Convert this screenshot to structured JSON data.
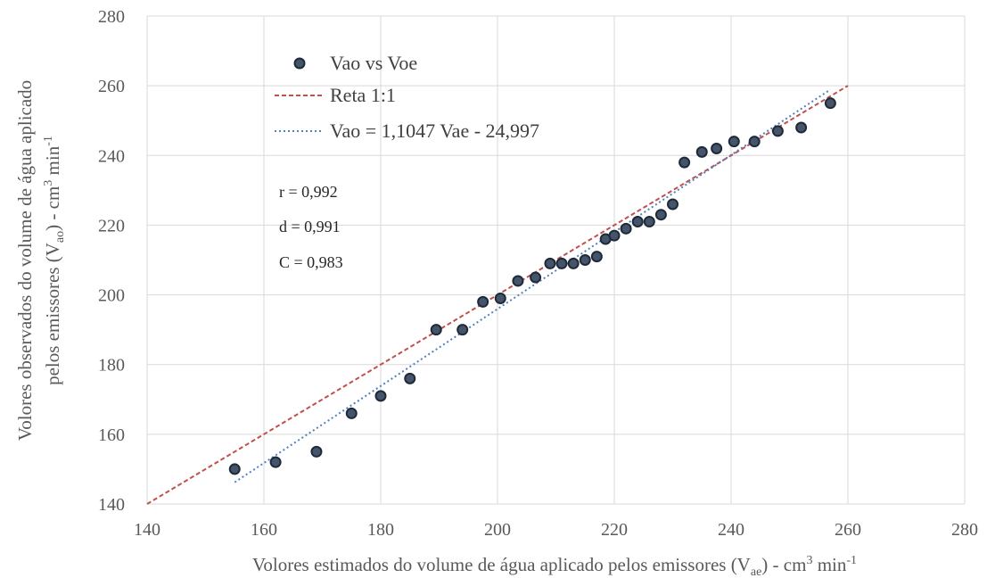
{
  "chart_data": {
    "type": "scatter",
    "xlim": [
      140,
      280
    ],
    "ylim": [
      140,
      280
    ],
    "xticks": [
      "140",
      "160",
      "180",
      "200",
      "220",
      "240",
      "260",
      "280"
    ],
    "yticks": [
      "140",
      "160",
      "180",
      "200",
      "220",
      "240",
      "260",
      "280"
    ],
    "grid": true,
    "xlabel": {
      "main": "Volores estimados do volume de água aplicado pelos emissores (V",
      "sub": "ae",
      "tail": ") - cm",
      "sup": "3",
      "tail2": " min",
      "sup2": "-1"
    },
    "ylabel": {
      "line1": "Volores observados do volume de água aplicado",
      "line2_main": "pelos emissores (V",
      "line2_sub": "ao",
      "line2_tail": ") - cm",
      "line2_sup": "3",
      "line2_tail2": " min",
      "line2_sup2": "-1"
    },
    "series": [
      {
        "name": "Vao vs Voe",
        "kind": "points",
        "color": "#44546a",
        "x": [
          155,
          162,
          169,
          175,
          180,
          185,
          189.5,
          194,
          197.5,
          200.5,
          203.5,
          206.5,
          209,
          211,
          213,
          215,
          217,
          218.5,
          220,
          222,
          224,
          226,
          228,
          230,
          232,
          235,
          237.5,
          240.5,
          244,
          248,
          252,
          257
        ],
        "y": [
          150,
          152,
          155,
          166,
          171,
          176,
          190,
          190,
          198,
          199,
          204,
          205,
          209,
          209,
          209,
          210,
          211,
          216,
          217,
          219,
          221,
          221,
          223,
          226,
          238,
          241,
          242,
          244,
          244,
          247,
          248,
          255
        ]
      },
      {
        "name": "Reta 1:1",
        "kind": "dashed-line",
        "color": "#c0504d",
        "x": [
          140,
          260
        ],
        "y": [
          140,
          260
        ]
      },
      {
        "name": "Vao = 1,1047 Vae - 24,997",
        "kind": "dotted-line",
        "color": "#4f81bd",
        "x": [
          155,
          257
        ],
        "y": [
          146.23,
          258.91
        ]
      }
    ],
    "legend_position": "top-left",
    "annotations": [
      "r = 0,992",
      "d = 0,991",
      "C = 0,983"
    ]
  }
}
